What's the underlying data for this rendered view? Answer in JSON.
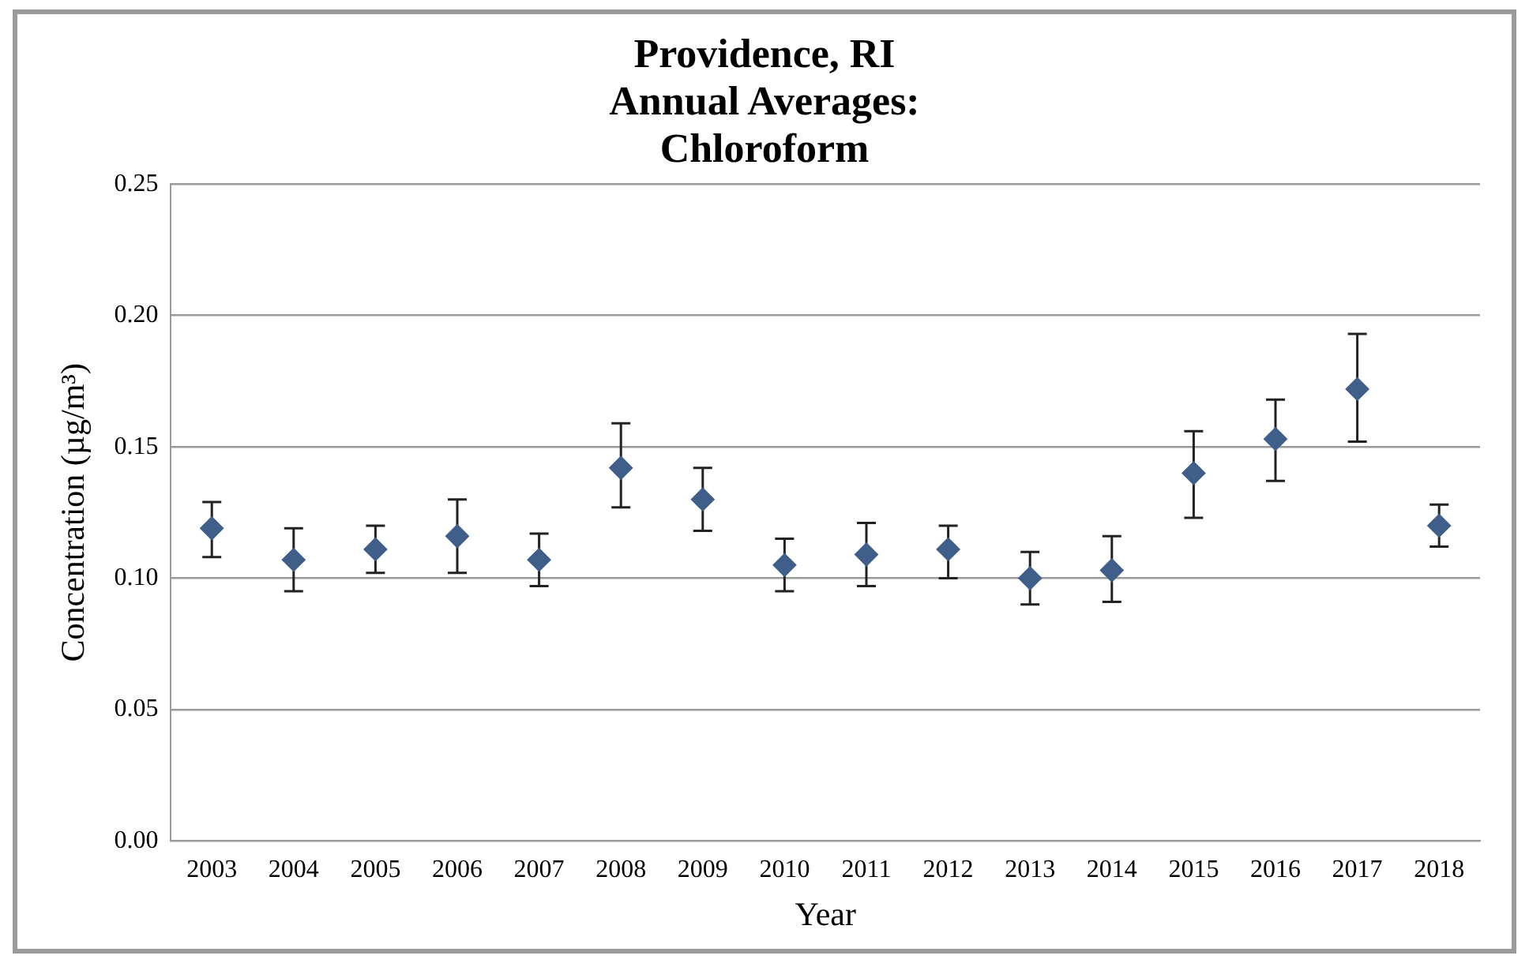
{
  "chart_data": {
    "type": "scatter",
    "title": [
      "Providence, RI",
      "Annual Averages:",
      "Chloroform"
    ],
    "xlabel": "Year",
    "ylabel": "Concentration (µg/m³)",
    "categories": [
      "2003",
      "2004",
      "2005",
      "2006",
      "2007",
      "2008",
      "2009",
      "2010",
      "2011",
      "2012",
      "2013",
      "2014",
      "2015",
      "2016",
      "2017",
      "2018"
    ],
    "series": [
      {
        "color": "#3f5f8a",
        "values": [
          0.119,
          0.107,
          0.111,
          0.116,
          0.107,
          0.142,
          0.13,
          0.105,
          0.109,
          0.111,
          0.1,
          0.103,
          0.14,
          0.153,
          0.172,
          0.12
        ],
        "errors": [
          [
            0.108,
            0.129
          ],
          [
            0.095,
            0.119
          ],
          [
            0.102,
            0.12
          ],
          [
            0.102,
            0.13
          ],
          [
            0.097,
            0.117
          ],
          [
            0.127,
            0.159
          ],
          [
            0.118,
            0.142
          ],
          [
            0.095,
            0.115
          ],
          [
            0.097,
            0.121
          ],
          [
            0.1,
            0.12
          ],
          [
            0.09,
            0.11
          ],
          [
            0.091,
            0.116
          ],
          [
            0.123,
            0.156
          ],
          [
            0.137,
            0.168
          ],
          [
            0.152,
            0.193
          ],
          [
            0.112,
            0.128
          ]
        ]
      }
    ],
    "ylim": [
      0,
      0.25
    ],
    "yticks": [
      {
        "value": 0,
        "label": "0.00"
      },
      {
        "value": 0.05,
        "label": "0.05"
      },
      {
        "value": 0.1,
        "label": "0.10"
      },
      {
        "value": 0.15,
        "label": "0.15"
      },
      {
        "value": 0.2,
        "label": "0.20"
      },
      {
        "value": 0.25,
        "label": "0.25"
      }
    ],
    "grid": "y",
    "legend": false,
    "marker": "diamond"
  }
}
